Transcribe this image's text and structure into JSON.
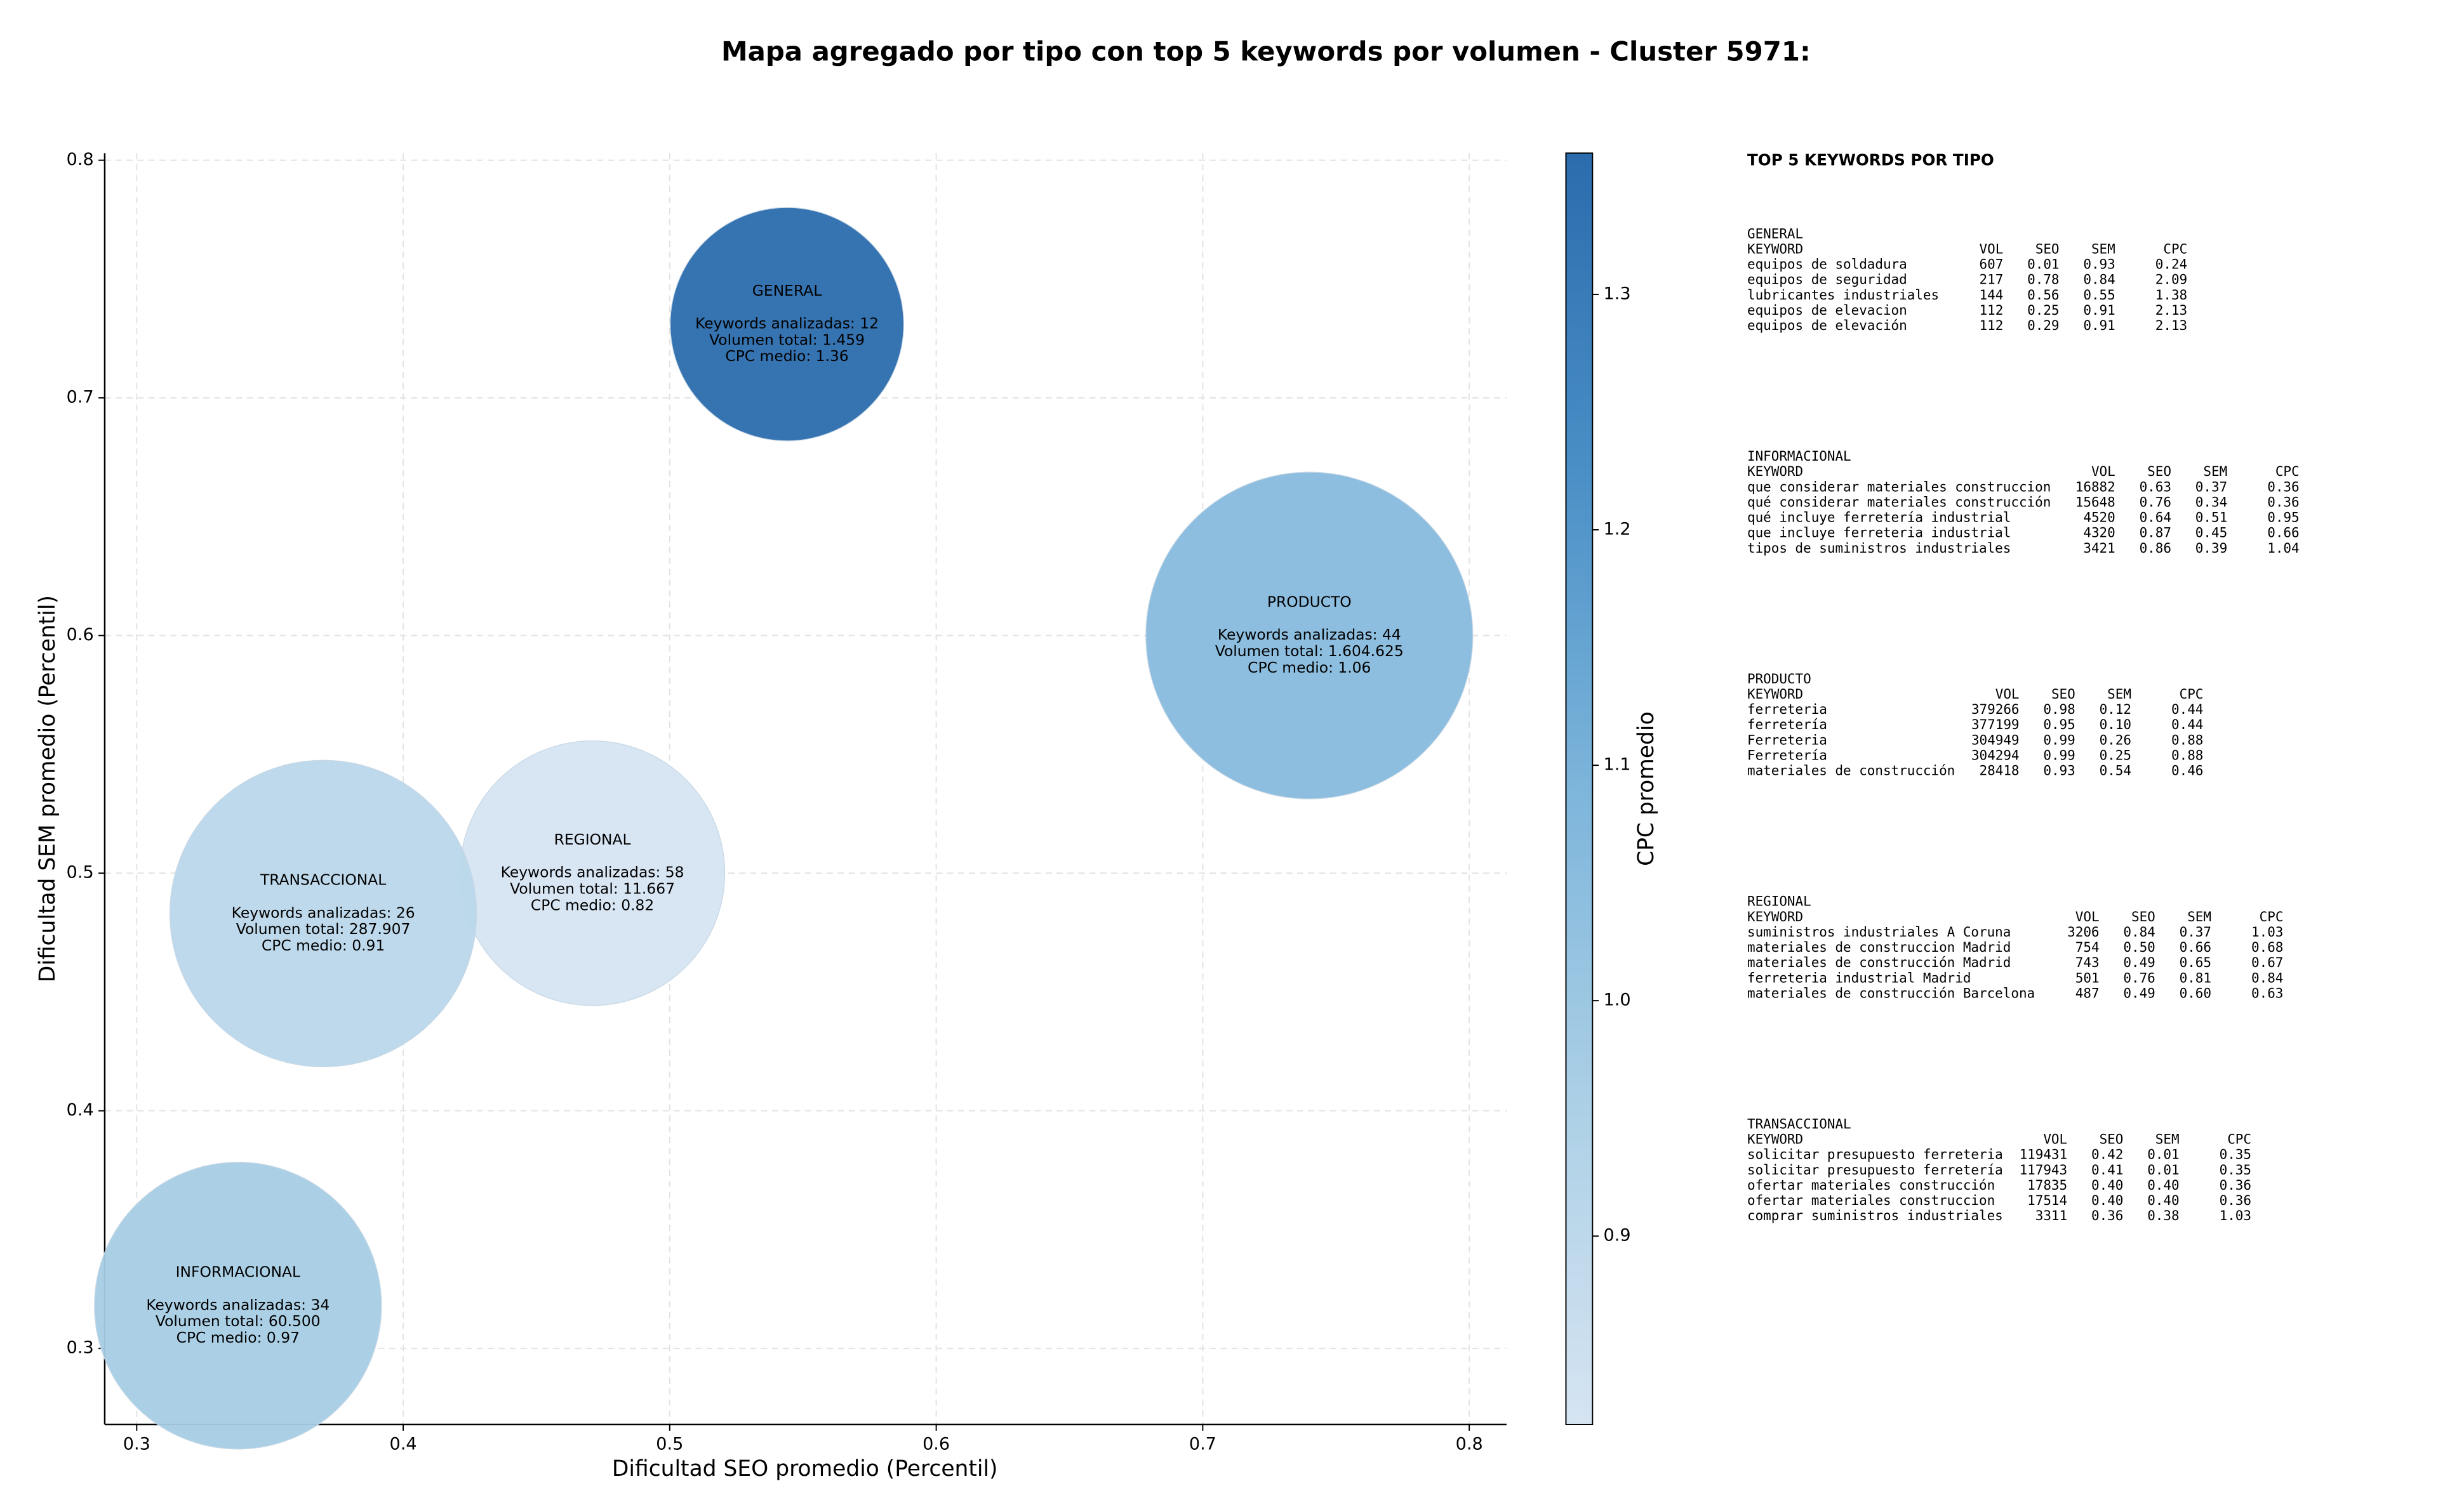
{
  "chart_data": {
    "type": "bubble",
    "title": "Mapa agregado por tipo con top 5 keywords por volumen - Cluster 5971:",
    "xlabel": "Dificultad SEO promedio (Percentil)",
    "ylabel": "Dificultad SEM promedio (Percentil)",
    "colorbar_label": "CPC promedio",
    "xlim": [
      0.288,
      0.814
    ],
    "ylim": [
      0.268,
      0.803
    ],
    "xticks": [
      0.3,
      0.4,
      0.5,
      0.6,
      0.7,
      0.8
    ],
    "yticks": [
      0.3,
      0.4,
      0.5,
      0.6,
      0.7,
      0.8
    ],
    "clim": [
      0.82,
      1.36
    ],
    "cticks": [
      0.9,
      {
        "value": 1,
        "label": "1.0"
      },
      1.1,
      1.2,
      1.3
    ],
    "colormap": [
      "#d6e4f2",
      "#acd0e6",
      "#7db5db",
      "#4a8fc6",
      "#2b6cad"
    ],
    "grid": true,
    "points": [
      {
        "name": "GENERAL",
        "x": 0.544,
        "y": 0.731,
        "volume": 1459,
        "keywords": 12,
        "cpc": 1.36,
        "labels": [
          "Keywords analizadas: 12",
          "Volumen total: 1.459",
          "CPC medio: 1.36"
        ]
      },
      {
        "name": "PRODUCTO",
        "x": 0.74,
        "y": 0.6,
        "volume": 1604625,
        "keywords": 44,
        "cpc": 1.06,
        "labels": [
          "Keywords analizadas: 44",
          "Volumen total: 1.604.625",
          "CPC medio: 1.06"
        ]
      },
      {
        "name": "REGIONAL",
        "x": 0.471,
        "y": 0.5,
        "volume": 11667,
        "keywords": 58,
        "cpc": 0.82,
        "labels": [
          "Keywords analizadas: 58",
          "Volumen total: 11.667",
          "CPC medio: 0.82"
        ]
      },
      {
        "name": "TRANSACCIONAL",
        "x": 0.37,
        "y": 0.483,
        "volume": 287907,
        "keywords": 26,
        "cpc": 0.91,
        "labels": [
          "Keywords analizadas: 26",
          "Volumen total: 287.907",
          "CPC medio: 0.91"
        ]
      },
      {
        "name": "INFORMACIONAL",
        "x": 0.338,
        "y": 0.318,
        "volume": 60500,
        "keywords": 34,
        "cpc": 0.97,
        "labels": [
          "Keywords analizadas: 34",
          "Volumen total: 60.500",
          "CPC medio: 0.97"
        ]
      }
    ]
  },
  "keyword_panel": {
    "title": "TOP 5 KEYWORDS POR TIPO",
    "columns": [
      "KEYWORD",
      "VOL",
      "SEO",
      "SEM",
      "CPC"
    ],
    "groups": [
      {
        "name": "GENERAL",
        "rows": [
          [
            "equipos de soldadura",
            "607",
            "0.01",
            "0.93",
            "0.24"
          ],
          [
            "equipos de seguridad",
            "217",
            "0.78",
            "0.84",
            "2.09"
          ],
          [
            "lubricantes industriales",
            "144",
            "0.56",
            "0.55",
            "1.38"
          ],
          [
            "equipos de elevacion",
            "112",
            "0.25",
            "0.91",
            "2.13"
          ],
          [
            "equipos de elevación",
            "112",
            "0.29",
            "0.91",
            "2.13"
          ]
        ]
      },
      {
        "name": "INFORMACIONAL",
        "rows": [
          [
            "que considerar materiales construccion",
            "16882",
            "0.63",
            "0.37",
            "0.36"
          ],
          [
            "qué considerar materiales construcción",
            "15648",
            "0.76",
            "0.34",
            "0.36"
          ],
          [
            "qué incluye ferretería industrial",
            "4520",
            "0.64",
            "0.51",
            "0.95"
          ],
          [
            "que incluye ferreteria industrial",
            "4320",
            "0.87",
            "0.45",
            "0.66"
          ],
          [
            "tipos de suministros industriales",
            "3421",
            "0.86",
            "0.39",
            "1.04"
          ]
        ]
      },
      {
        "name": "PRODUCTO",
        "rows": [
          [
            "ferreteria",
            "379266",
            "0.98",
            "0.12",
            "0.44"
          ],
          [
            "ferretería",
            "377199",
            "0.95",
            "0.10",
            "0.44"
          ],
          [
            "Ferreteria",
            "304949",
            "0.99",
            "0.26",
            "0.88"
          ],
          [
            "Ferretería",
            "304294",
            "0.99",
            "0.25",
            "0.88"
          ],
          [
            "materiales de construcción",
            "28418",
            "0.93",
            "0.54",
            "0.46"
          ]
        ]
      },
      {
        "name": "REGIONAL",
        "rows": [
          [
            "suministros industriales A Coruna",
            "3206",
            "0.84",
            "0.37",
            "1.03"
          ],
          [
            "materiales de construccion Madrid",
            "754",
            "0.50",
            "0.66",
            "0.68"
          ],
          [
            "materiales de construcción Madrid",
            "743",
            "0.49",
            "0.65",
            "0.67"
          ],
          [
            "ferreteria industrial Madrid",
            "501",
            "0.76",
            "0.81",
            "0.84"
          ],
          [
            "materiales de construcción Barcelona",
            "487",
            "0.49",
            "0.60",
            "0.63"
          ]
        ]
      },
      {
        "name": "TRANSACCIONAL",
        "rows": [
          [
            "solicitar presupuesto ferreteria",
            "119431",
            "0.42",
            "0.01",
            "0.35"
          ],
          [
            "solicitar presupuesto ferretería",
            "117943",
            "0.41",
            "0.01",
            "0.35"
          ],
          [
            "ofertar materiales construcción",
            "17835",
            "0.40",
            "0.40",
            "0.36"
          ],
          [
            "ofertar materiales construccion",
            "17514",
            "0.40",
            "0.40",
            "0.36"
          ],
          [
            "comprar suministros industriales",
            "3311",
            "0.36",
            "0.38",
            "1.03"
          ]
        ]
      }
    ]
  }
}
